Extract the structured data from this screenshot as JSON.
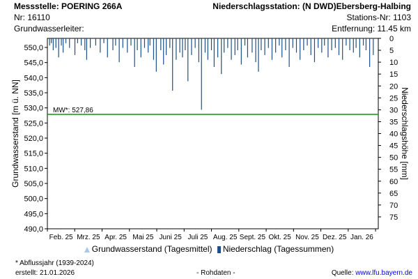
{
  "header": {
    "station_label": "Messstelle: POERING 266A",
    "nr_label": "Nr: 16110",
    "aquifer_label": "Grundwasserleiter:",
    "precip_station_label": "Niederschlagsstation: (N DWD)Ebersberg-Halbing",
    "precip_station_nr": "Stations-Nr: 1103",
    "distance_label": "Entfernung: 11.45 km"
  },
  "chart_data": {
    "type": "bar",
    "ylabel_left": "Grundwasserstand [m ü. NN]",
    "ylabel_right": "Niederschlagshöhe [mm]",
    "ylim_left": [
      490,
      553
    ],
    "left_ticks": [
      "490,0",
      "495,0",
      "500,0",
      "505,0",
      "510,0",
      "515,0",
      "520,0",
      "525,0",
      "530,0",
      "535,0",
      "540,0",
      "545,0",
      "550,0"
    ],
    "ylim_right": [
      0,
      80
    ],
    "right_ticks": [
      "0",
      "5",
      "10",
      "15",
      "20",
      "25",
      "30",
      "35",
      "40",
      "45",
      "50",
      "55",
      "60",
      "65",
      "70",
      "75"
    ],
    "x_months": [
      "Feb. 25",
      "Mrz. 25",
      "Apr. 25",
      "Mai 25",
      "Juni 25",
      "Juli 25",
      "Aug. 25",
      "Sept. 25",
      "Okt. 25",
      "Nov. 25",
      "Dez. 25",
      "Jan. 26"
    ],
    "mean_line": {
      "label": "MW*: 527,86",
      "value": 527.86,
      "color": "#1a9e1a"
    },
    "precip_color": "#1f4f86",
    "precipitation_series": {
      "name": "Niederschlag (Tagessummen)",
      "days": [
        2,
        4,
        6,
        9,
        12,
        15,
        17,
        20,
        24,
        30,
        33,
        37,
        41,
        43,
        47,
        53,
        58,
        62,
        66,
        72,
        75,
        79,
        83,
        88,
        92,
        96,
        99,
        103,
        107,
        111,
        113,
        117,
        120,
        125,
        128,
        131,
        135,
        138,
        142,
        146,
        149,
        152,
        155,
        159,
        163,
        167,
        170,
        174,
        177,
        181,
        184,
        188,
        192,
        195,
        199,
        203,
        207,
        210,
        214,
        218,
        221,
        226,
        230,
        233,
        236,
        240,
        244,
        248,
        252,
        256,
        259,
        263,
        267,
        271,
        275,
        279,
        283,
        287,
        291,
        295,
        299,
        303,
        306,
        310,
        314,
        318,
        322,
        326,
        330,
        334,
        338,
        341,
        345,
        349,
        352,
        356,
        360
      ],
      "values": [
        3,
        2,
        5,
        4,
        8,
        3,
        6,
        2,
        4,
        7,
        2,
        3,
        5,
        9,
        4,
        3,
        6,
        2,
        8,
        5,
        3,
        10,
        4,
        6,
        3,
        12,
        5,
        8,
        4,
        6,
        3,
        9,
        14,
        5,
        11,
        7,
        4,
        22,
        9,
        6,
        8,
        5,
        18,
        7,
        4,
        10,
        30,
        6,
        9,
        5,
        12,
        8,
        15,
        6,
        4,
        9,
        7,
        5,
        11,
        3,
        8,
        6,
        10,
        14,
        5,
        7,
        4,
        9,
        6,
        3,
        8,
        5,
        12,
        4,
        6,
        9,
        5,
        3,
        7,
        10,
        4,
        6,
        3,
        8,
        5,
        4,
        7,
        9,
        3,
        5,
        6,
        4,
        8,
        3,
        5,
        12,
        7
      ]
    },
    "groundwater_series": {
      "name": "Grundwasserstand (Tagesmittel)",
      "values": []
    },
    "legend": [
      "Grundwasserstand (Tagesmittel)",
      "Niederschlag (Tagessummen)"
    ]
  },
  "footer": {
    "note": "* Abflussjahr (1939-2024)",
    "created": "erstellt:  21.01.2026",
    "raw": "- Rohdaten -",
    "source_prefix": "Quelle: ",
    "source_link": "www.lfu.bayern.de"
  }
}
